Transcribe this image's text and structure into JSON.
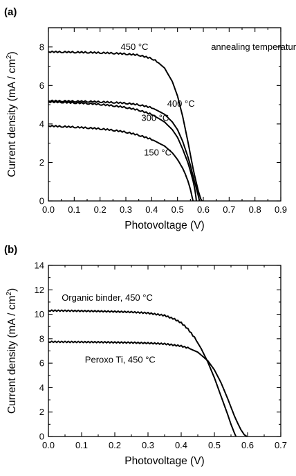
{
  "chart_data": [
    {
      "type": "line",
      "panel_label": "(a)",
      "xlabel": "Photovoltage (V)",
      "ylabel": "Current density (mA / cm",
      "ylabel_sup": "2",
      "ylabel_close": ")",
      "xlim": [
        0.0,
        0.9
      ],
      "ylim": [
        0,
        9
      ],
      "xticks": [
        "0.0",
        "0.1",
        "0.2",
        "0.3",
        "0.4",
        "0.5",
        "0.6",
        "0.7",
        "0.8",
        "0.9"
      ],
      "yticks": [
        "0",
        "2",
        "4",
        "6",
        "8"
      ],
      "annotations": [
        {
          "text": "annealing temperature",
          "x": 0.63,
          "y": 7.85
        }
      ],
      "series": [
        {
          "name": "450 °C",
          "label_x": 0.28,
          "label_y": 7.85,
          "x": [
            0,
            0.05,
            0.1,
            0.15,
            0.2,
            0.25,
            0.3,
            0.35,
            0.4,
            0.42,
            0.45,
            0.48,
            0.5,
            0.52,
            0.54,
            0.55,
            0.56,
            0.57,
            0.58,
            0.59,
            0.595
          ],
          "y": [
            7.75,
            7.74,
            7.73,
            7.72,
            7.7,
            7.68,
            7.64,
            7.58,
            7.4,
            7.25,
            6.9,
            6.2,
            5.45,
            4.4,
            3.1,
            2.4,
            1.7,
            1.1,
            0.55,
            0.1,
            0
          ]
        },
        {
          "name": "400 °C",
          "label_x": 0.46,
          "label_y": 4.9,
          "x": [
            0,
            0.05,
            0.1,
            0.15,
            0.2,
            0.25,
            0.3,
            0.35,
            0.4,
            0.45,
            0.48,
            0.5,
            0.52,
            0.54,
            0.55,
            0.56,
            0.57,
            0.58,
            0.585
          ],
          "y": [
            5.2,
            5.19,
            5.18,
            5.17,
            5.15,
            5.12,
            5.08,
            5.0,
            4.85,
            4.5,
            4.1,
            3.7,
            3.1,
            2.3,
            1.85,
            1.3,
            0.8,
            0.3,
            0
          ]
        },
        {
          "name": "300 °C",
          "label_x": 0.36,
          "label_y": 4.15,
          "x": [
            0,
            0.05,
            0.1,
            0.15,
            0.2,
            0.25,
            0.3,
            0.35,
            0.4,
            0.45,
            0.48,
            0.5,
            0.52,
            0.54,
            0.55,
            0.56,
            0.565,
            0.57,
            0.573
          ],
          "y": [
            5.15,
            5.13,
            5.1,
            5.07,
            5.02,
            4.95,
            4.86,
            4.72,
            4.5,
            4.1,
            3.7,
            3.3,
            2.7,
            2.0,
            1.55,
            1.05,
            0.75,
            0.35,
            0
          ]
        },
        {
          "name": "150 °C",
          "label_x": 0.37,
          "label_y": 2.35,
          "x": [
            0,
            0.05,
            0.1,
            0.15,
            0.2,
            0.25,
            0.3,
            0.35,
            0.4,
            0.45,
            0.48,
            0.5,
            0.52,
            0.53,
            0.54,
            0.55,
            0.555,
            0.56
          ],
          "y": [
            3.9,
            3.87,
            3.84,
            3.8,
            3.75,
            3.68,
            3.58,
            3.42,
            3.2,
            2.85,
            2.5,
            2.15,
            1.7,
            1.4,
            1.05,
            0.6,
            0.3,
            0
          ]
        }
      ]
    },
    {
      "type": "line",
      "panel_label": "(b)",
      "xlabel": "Photovoltage (V)",
      "ylabel": "Current density (mA / cm",
      "ylabel_sup": "2",
      "ylabel_close": ")",
      "xlim": [
        0.0,
        0.7
      ],
      "ylim": [
        0,
        14
      ],
      "xticks": [
        "0.0",
        "0.1",
        "0.2",
        "0.3",
        "0.4",
        "0.5",
        "0.6",
        "0.7"
      ],
      "yticks": [
        "0",
        "2",
        "4",
        "6",
        "8",
        "10",
        "12",
        "14"
      ],
      "series": [
        {
          "name": "Organic binder, 450 °C",
          "label_x": 0.04,
          "label_y": 11.1,
          "x": [
            0,
            0.05,
            0.1,
            0.15,
            0.2,
            0.25,
            0.3,
            0.35,
            0.38,
            0.4,
            0.42,
            0.44,
            0.46,
            0.48,
            0.5,
            0.52,
            0.54,
            0.55,
            0.56,
            0.565
          ],
          "y": [
            10.3,
            10.29,
            10.27,
            10.25,
            10.22,
            10.18,
            10.1,
            9.9,
            9.6,
            9.3,
            8.8,
            8.1,
            7.2,
            6.1,
            4.8,
            3.3,
            1.8,
            1.0,
            0.3,
            0
          ]
        },
        {
          "name": "Peroxo Ti, 450 °C",
          "label_x": 0.11,
          "label_y": 6.05,
          "x": [
            0,
            0.05,
            0.1,
            0.15,
            0.2,
            0.25,
            0.3,
            0.35,
            0.4,
            0.42,
            0.45,
            0.48,
            0.5,
            0.52,
            0.54,
            0.55,
            0.56,
            0.57,
            0.58,
            0.59,
            0.598
          ],
          "y": [
            7.75,
            7.74,
            7.73,
            7.72,
            7.7,
            7.68,
            7.64,
            7.58,
            7.4,
            7.25,
            6.9,
            6.2,
            5.45,
            4.4,
            3.1,
            2.4,
            1.7,
            1.1,
            0.55,
            0.15,
            0
          ]
        }
      ]
    }
  ]
}
